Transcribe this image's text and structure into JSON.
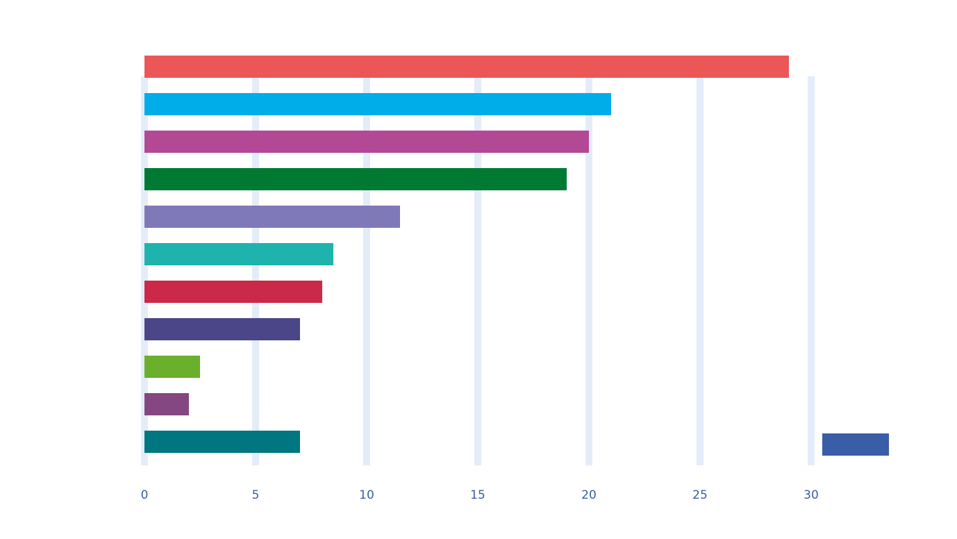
{
  "chart_data": {
    "type": "bar",
    "orientation": "horizontal",
    "title": "",
    "xlabel": "",
    "ylabel": "",
    "xlim": [
      0,
      30
    ],
    "grid": true,
    "categories": [
      "",
      "",
      "",
      "",
      "",
      "",
      "",
      "",
      "",
      "",
      ""
    ],
    "values": [
      29,
      21,
      20,
      19,
      11.5,
      8.5,
      8,
      7,
      2.5,
      2,
      7
    ],
    "colors": [
      "#eb5757",
      "#00ade9",
      "#b34995",
      "#007a33",
      "#8079b8",
      "#1eb3ad",
      "#cc2848",
      "#4b4687",
      "#6ab02d",
      "#844781",
      "#007681"
    ],
    "value_labels": [
      "",
      "",
      "",
      "",
      "",
      "",
      "",
      "",
      "",
      "",
      ""
    ],
    "x_ticks": [
      0,
      5,
      10,
      15,
      20,
      25,
      30
    ],
    "legend": {
      "position": "bottom-right",
      "label": "",
      "color": "#3a5da8"
    }
  }
}
